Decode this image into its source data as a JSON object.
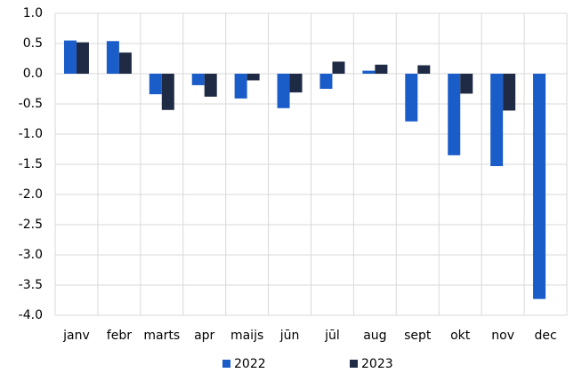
{
  "chart_data": {
    "type": "bar",
    "categories": [
      "janv",
      "febr",
      "marts",
      "apr",
      "maijs",
      "jūn",
      "jūl",
      "aug",
      "sept",
      "okt",
      "nov",
      "dec"
    ],
    "series": [
      {
        "name": "2022",
        "color": "#1a5cc8",
        "values": [
          0.55,
          0.54,
          -0.34,
          -0.19,
          -0.41,
          -0.57,
          -0.25,
          0.05,
          -0.79,
          -1.35,
          -1.53,
          -3.73
        ]
      },
      {
        "name": "2023",
        "color": "#1f2a44",
        "values": [
          0.52,
          0.35,
          -0.6,
          -0.38,
          -0.11,
          -0.31,
          0.2,
          0.15,
          0.14,
          -0.33,
          -0.61,
          null
        ]
      }
    ],
    "ylim": [
      -4,
      1
    ],
    "yticks": [
      {
        "value": 1,
        "label": "1.0"
      },
      0.5,
      {
        "value": 0,
        "label": "0.0"
      },
      -0.5,
      {
        "value": -1,
        "label": "-1.0"
      },
      -1.5,
      {
        "value": -2,
        "label": "-2.0"
      },
      -2.5,
      {
        "value": -3,
        "label": "-3.0"
      },
      -3.5,
      {
        "value": -4,
        "label": "-4.0"
      }
    ],
    "grid": true,
    "legend": "bottom"
  }
}
